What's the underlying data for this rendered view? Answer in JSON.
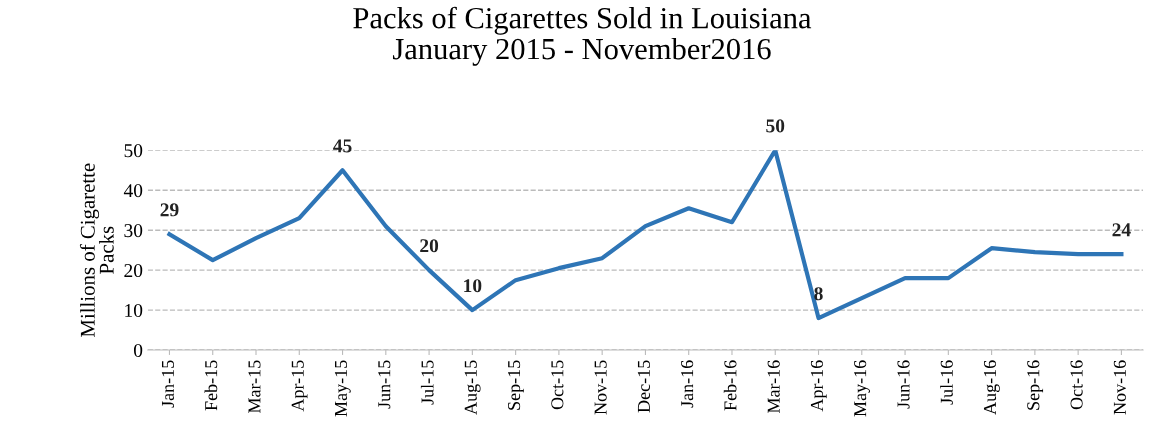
{
  "chart_data": {
    "type": "line",
    "title": "Packs of Cigarettes Sold in Louisiana\nJanuary 2015 - November2016",
    "ylabel": "Millions of Cigarette\nPacks",
    "categories": [
      "Jan-15",
      "Feb-15",
      "Mar-15",
      "Apr-15",
      "May-15",
      "Jun-15",
      "Jul-15",
      "Aug-15",
      "Sep-15",
      "Oct-15",
      "Nov-15",
      "Dec-15",
      "Jan-16",
      "Feb-16",
      "Mar-16",
      "Apr-16",
      "May-16",
      "Jun-16",
      "Jul-16",
      "Aug-16",
      "Sep-16",
      "Oct-16",
      "Nov-16"
    ],
    "series": [
      {
        "color": "#2e75b6",
        "values": [
          29,
          22.5,
          28,
          33,
          45,
          31,
          20,
          10,
          17.5,
          20.5,
          23,
          31,
          35.5,
          32,
          50,
          8,
          13,
          18,
          18,
          25.5,
          24.5,
          24,
          24
        ],
        "value_labels": [
          "29",
          null,
          null,
          null,
          "45",
          null,
          "20",
          "10",
          null,
          null,
          null,
          null,
          null,
          null,
          "50",
          "8",
          null,
          null,
          null,
          null,
          null,
          null,
          "24"
        ]
      }
    ],
    "ylim": [
      0,
      50
    ],
    "yticks": [
      0,
      10,
      20,
      30,
      40,
      50
    ],
    "grid": "y",
    "marker": "none",
    "line_style": "solid"
  }
}
